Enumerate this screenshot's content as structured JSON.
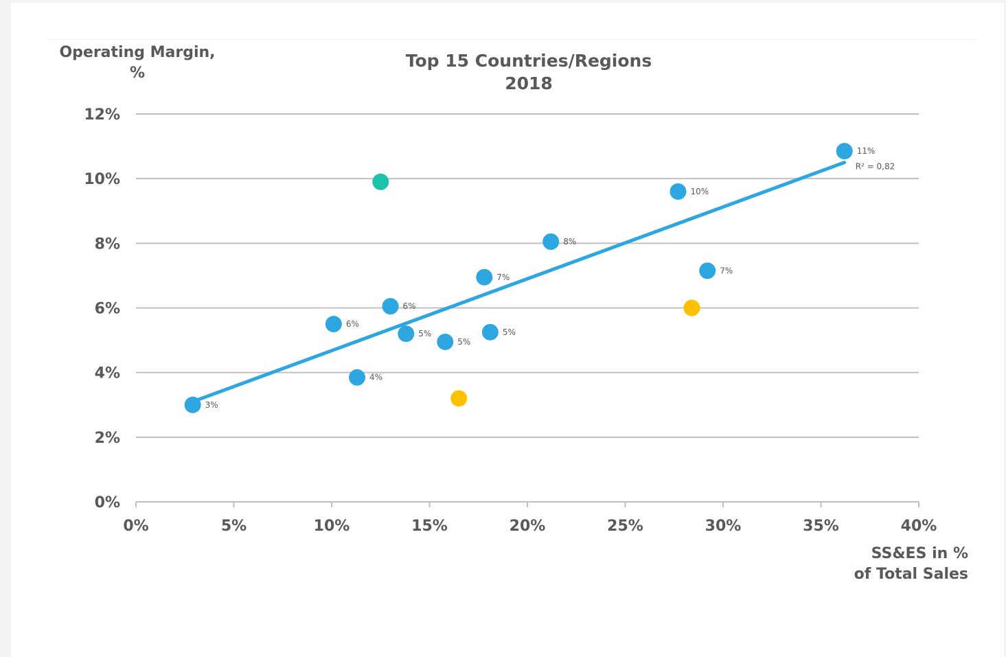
{
  "chart_data": {
    "type": "scatter",
    "title": "Top 15 Countries/Regions\n2018",
    "xlabel": "SS&ES in %\nof Total Sales",
    "ylabel": "Operating Margin,\n%",
    "xlim": [
      0,
      40
    ],
    "ylim": [
      0,
      12
    ],
    "x_ticks": [
      "0%",
      "5%",
      "10%",
      "15%",
      "20%",
      "25%",
      "30%",
      "35%",
      "40%"
    ],
    "y_ticks": [
      "0%",
      "2%",
      "4%",
      "6%",
      "8%",
      "10%",
      "12%"
    ],
    "grid": "horizontal",
    "colors": {
      "main": "#2ea7e0",
      "teal": "#1dc3a8",
      "gold": "#ffc000",
      "grid": "#c0c0c0",
      "axis_text": "#595959"
    },
    "points": [
      {
        "x": 2.9,
        "y": 3.0,
        "label": "3%",
        "color": "main"
      },
      {
        "x": 10.1,
        "y": 5.5,
        "label": "6%",
        "color": "main"
      },
      {
        "x": 11.3,
        "y": 3.85,
        "label": "4%",
        "color": "main"
      },
      {
        "x": 12.5,
        "y": 9.9,
        "label": "",
        "color": "teal"
      },
      {
        "x": 13.0,
        "y": 6.05,
        "label": "6%",
        "color": "main"
      },
      {
        "x": 13.8,
        "y": 5.2,
        "label": "5%",
        "color": "main"
      },
      {
        "x": 15.8,
        "y": 4.95,
        "label": "5%",
        "color": "main"
      },
      {
        "x": 16.5,
        "y": 3.2,
        "label": "",
        "color": "gold"
      },
      {
        "x": 17.8,
        "y": 6.95,
        "label": "7%",
        "color": "main"
      },
      {
        "x": 18.1,
        "y": 5.25,
        "label": "5%",
        "color": "main"
      },
      {
        "x": 21.2,
        "y": 8.05,
        "label": "8%",
        "color": "main"
      },
      {
        "x": 27.7,
        "y": 9.6,
        "label": "10%",
        "color": "main"
      },
      {
        "x": 28.4,
        "y": 6.0,
        "label": "",
        "color": "gold"
      },
      {
        "x": 29.2,
        "y": 7.15,
        "label": "7%",
        "color": "main"
      },
      {
        "x": 36.2,
        "y": 10.85,
        "label": "11%",
        "color": "main"
      }
    ],
    "trendline": {
      "x": [
        2.9,
        36.2
      ],
      "y": [
        3.1,
        10.5
      ],
      "r2_label": "R² = 0,82"
    }
  }
}
